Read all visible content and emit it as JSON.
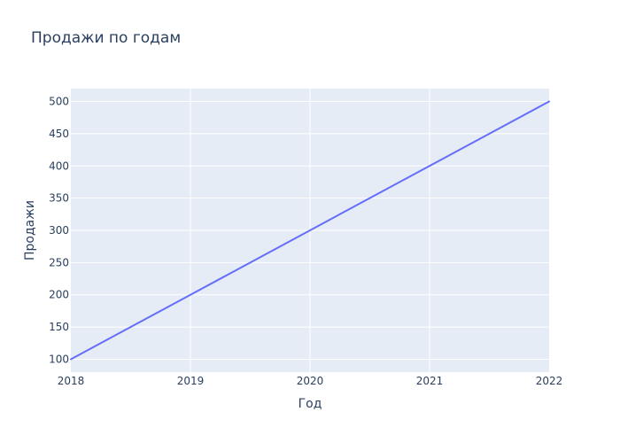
{
  "chart_data": {
    "type": "line",
    "title": "Продажи по годам",
    "xlabel": "Год",
    "ylabel": "Продажи",
    "x": [
      2018,
      2019,
      2020,
      2021,
      2022
    ],
    "series": [
      {
        "values": [
          100,
          200,
          300,
          400,
          500
        ],
        "color": "#636efa"
      }
    ],
    "xlim": [
      2018,
      2022
    ],
    "ylim": [
      80,
      520
    ],
    "xticks": [
      "2018",
      "2019",
      "2020",
      "2021",
      "2022"
    ],
    "yticks": [
      "100",
      "150",
      "200",
      "250",
      "300",
      "350",
      "400",
      "450",
      "500"
    ],
    "grid": true,
    "legend": "none",
    "colors": {
      "plot_background": "#e5ecf6",
      "grid": "#ffffff",
      "text": "#2a3f5f"
    }
  }
}
